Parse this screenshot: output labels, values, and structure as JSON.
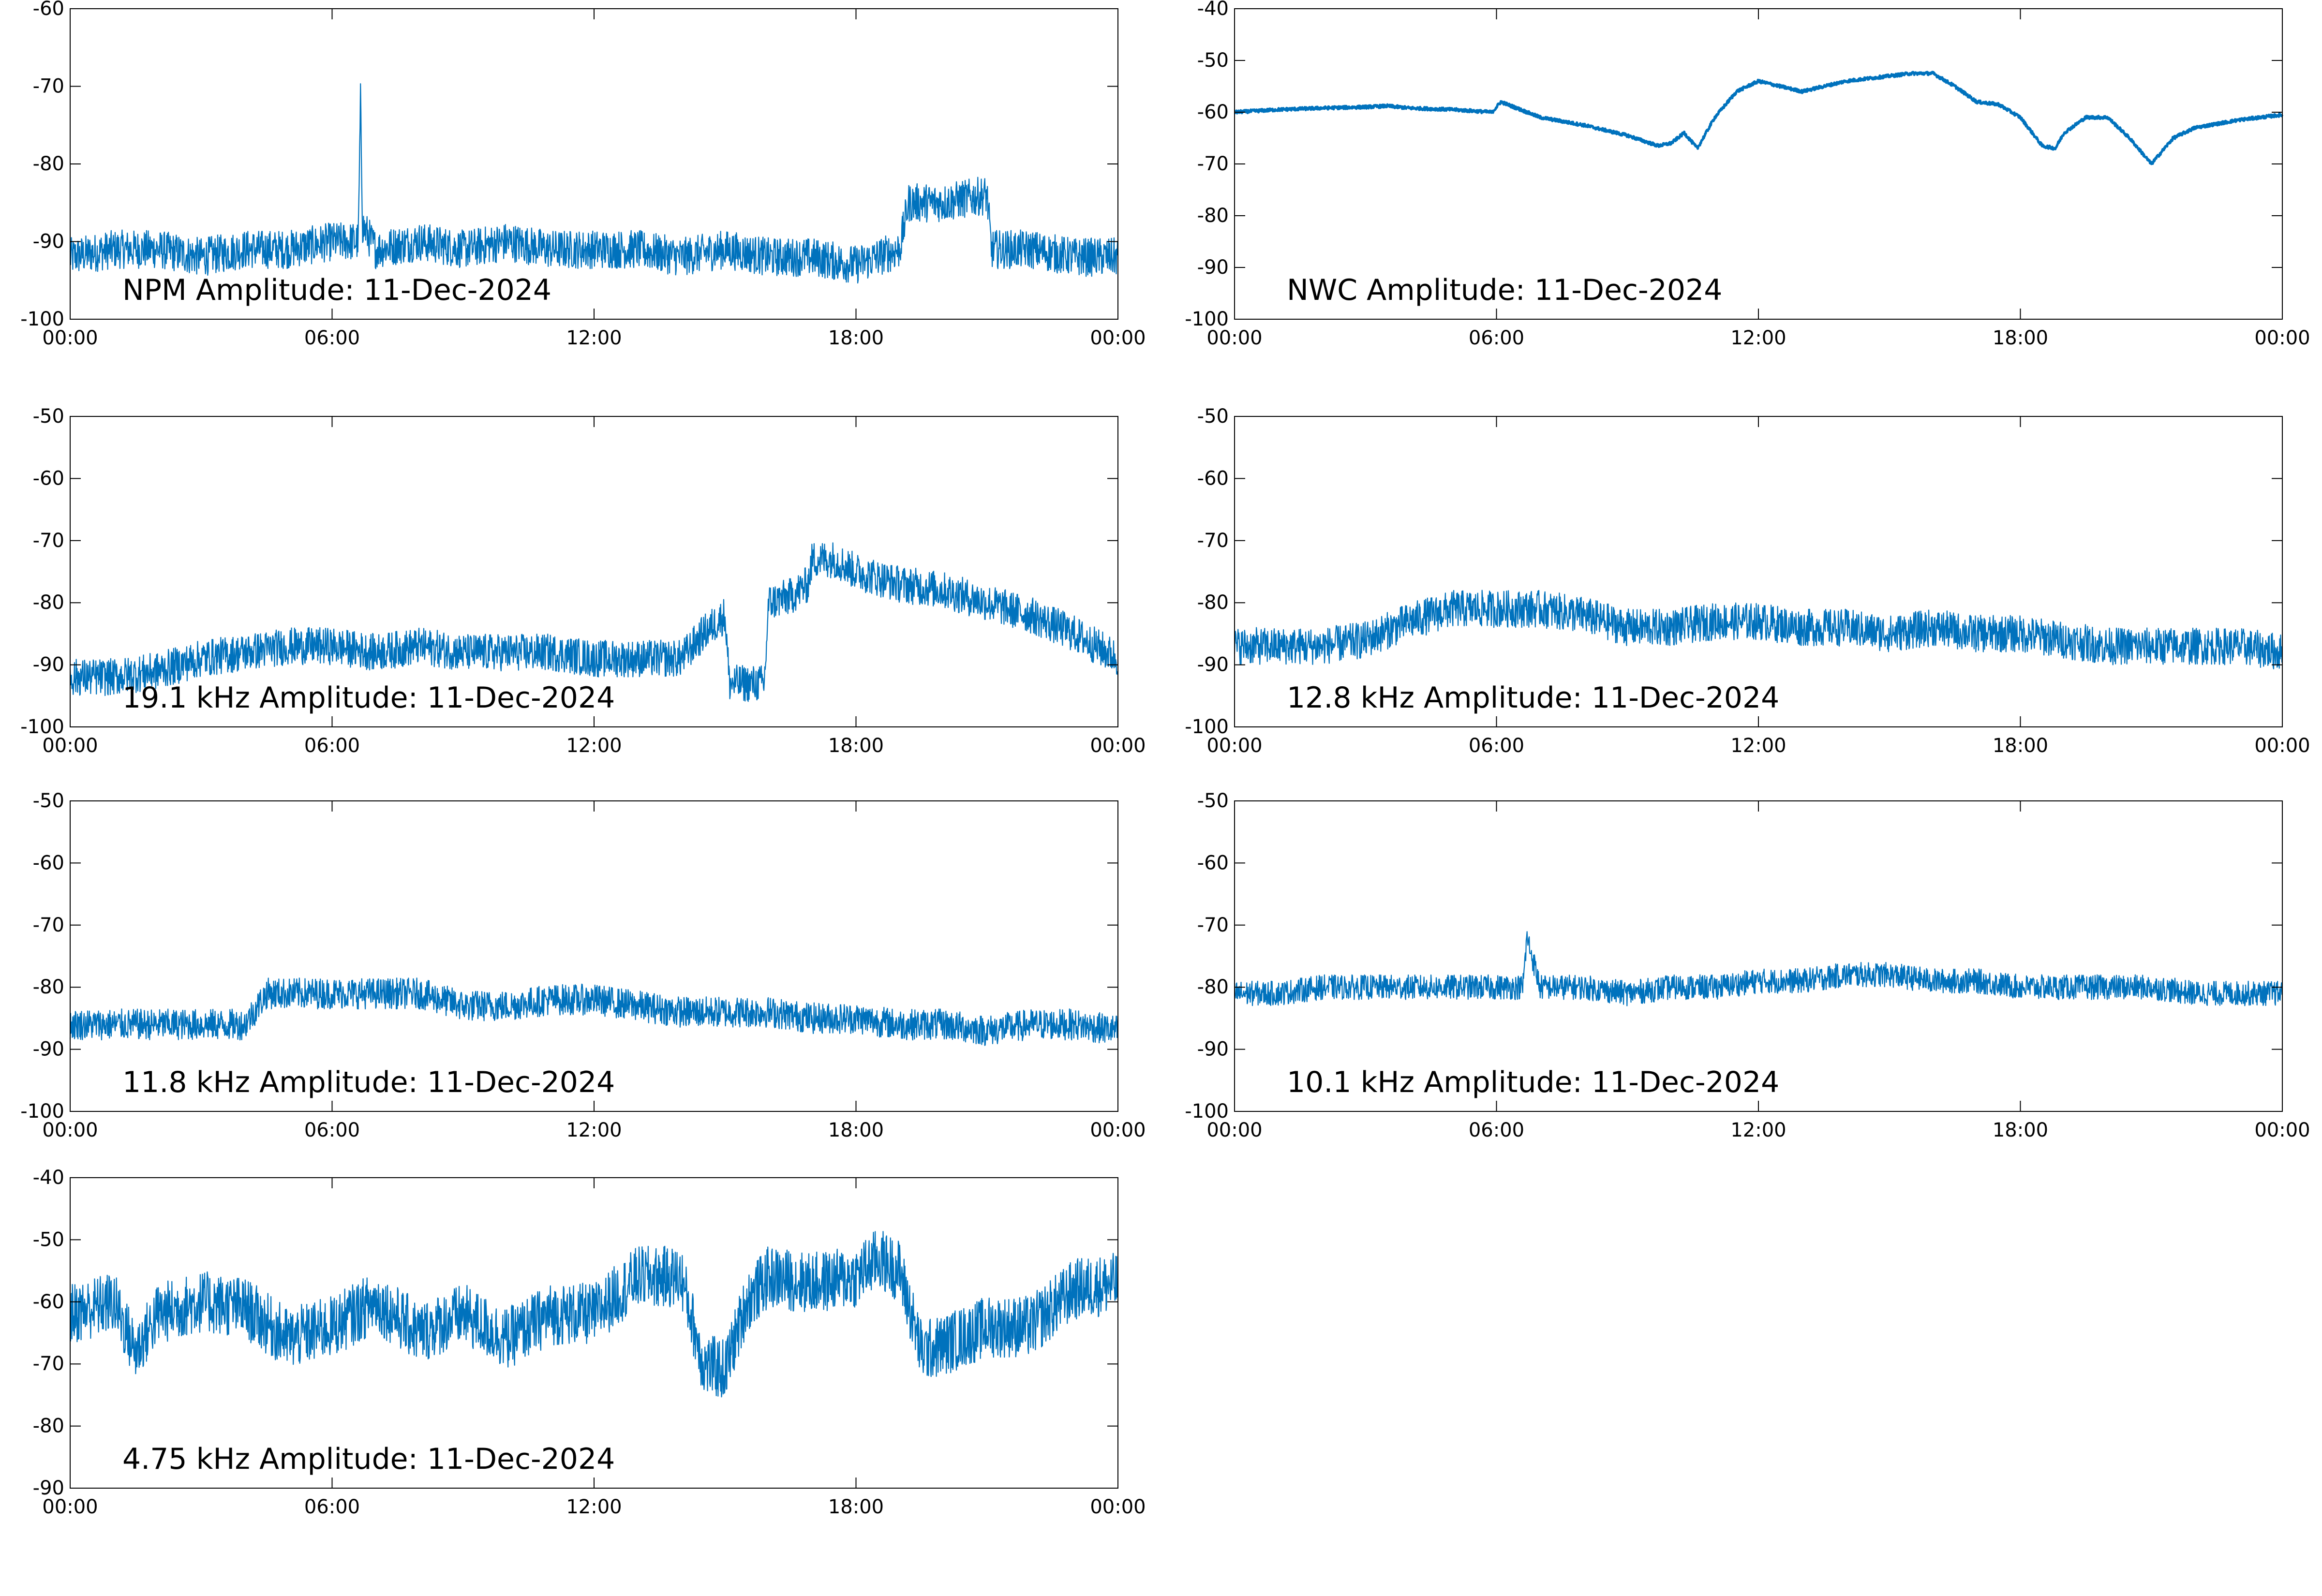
{
  "figure": {
    "line_color": "#0072bd",
    "background": "#ffffff",
    "axis_color": "#000000"
  },
  "chart_data": [
    {
      "type": "line",
      "title": "NPM Amplitude: 11-Dec-2024",
      "x_ticks": [
        "00:00",
        "06:00",
        "12:00",
        "18:00",
        "00:00"
      ],
      "y_ticks": [
        "-60",
        "-70",
        "-80",
        "-90",
        "-100"
      ],
      "ylim": [
        -100,
        -60
      ],
      "xlim_hours": [
        0,
        24
      ],
      "series": [
        {
          "x_hours": [
            0,
            1,
            2,
            3,
            4,
            5,
            6,
            6.6,
            6.65,
            6.7,
            7,
            8,
            9,
            10,
            11,
            12,
            13,
            14,
            15,
            16,
            17,
            18,
            19,
            19.2,
            20,
            21,
            21.1,
            22,
            23,
            24
          ],
          "values": [
            -92,
            -91,
            -91,
            -92,
            -91,
            -91,
            -90,
            -90,
            -72,
            -88,
            -91,
            -90,
            -91,
            -90,
            -91,
            -91,
            -91,
            -92,
            -91,
            -92,
            -92,
            -93,
            -91,
            -85,
            -85,
            -84,
            -91,
            -91,
            -92,
            -92
          ],
          "noise_band": 5
        }
      ]
    },
    {
      "type": "line",
      "title": "NWC Amplitude: 11-Dec-2024",
      "x_ticks": [
        "00:00",
        "06:00",
        "12:00",
        "18:00",
        "00:00"
      ],
      "y_ticks": [
        "-40",
        "-50",
        "-60",
        "-70",
        "-80",
        "-90",
        "-100"
      ],
      "ylim": [
        -100,
        -40
      ],
      "xlim_hours": [
        0,
        24
      ],
      "series": [
        {
          "x_hours": [
            0,
            1,
            2,
            3,
            3.5,
            4,
            5,
            5.9,
            6.1,
            7,
            8,
            9,
            9.7,
            10,
            10.3,
            10.6,
            11,
            11.5,
            12,
            12.5,
            13,
            14,
            15,
            15.5,
            16,
            16.5,
            17,
            17.5,
            18,
            18.5,
            18.8,
            19,
            19.5,
            20,
            20.5,
            21,
            21.5,
            22,
            23,
            24
          ],
          "values": [
            -60,
            -59.5,
            -59.2,
            -59,
            -58.8,
            -59.2,
            -59.5,
            -60,
            -58,
            -61,
            -62.5,
            -64.5,
            -66.5,
            -66,
            -64,
            -67,
            -61,
            -56,
            -54,
            -55,
            -56,
            -54,
            -53,
            -52.5,
            -52.5,
            -55,
            -58,
            -58.5,
            -61,
            -66.5,
            -67,
            -64,
            -61,
            -61,
            -65,
            -70,
            -65,
            -63,
            -61.5,
            -60.5
          ],
          "noise_band": 0.6
        }
      ]
    },
    {
      "type": "line",
      "title": "19.1 kHz Amplitude: 11-Dec-2024",
      "x_ticks": [
        "00:00",
        "06:00",
        "12:00",
        "18:00",
        "00:00"
      ],
      "y_ticks": [
        "-50",
        "-60",
        "-70",
        "-80",
        "-90",
        "-100"
      ],
      "ylim": [
        -100,
        -50
      ],
      "xlim_hours": [
        0,
        24
      ],
      "series": [
        {
          "x_hours": [
            0,
            1,
            2,
            3,
            4,
            5,
            6,
            7,
            8,
            9,
            10,
            11,
            12,
            13,
            14,
            14.5,
            15,
            15.1,
            15.9,
            16,
            16.5,
            16.9,
            17,
            17.5,
            18,
            19,
            20,
            21,
            22,
            23,
            24
          ],
          "values": [
            -92,
            -92,
            -91,
            -89,
            -88,
            -87,
            -87,
            -88,
            -87,
            -88,
            -88,
            -88,
            -89,
            -89,
            -89,
            -85,
            -82,
            -93,
            -93,
            -80,
            -79,
            -77,
            -73,
            -73,
            -75,
            -77,
            -78,
            -80,
            -82,
            -85,
            -89
          ],
          "noise_band": 6
        }
      ]
    },
    {
      "type": "line",
      "title": "12.8 kHz Amplitude: 11-Dec-2024",
      "x_ticks": [
        "00:00",
        "06:00",
        "12:00",
        "18:00",
        "00:00"
      ],
      "y_ticks": [
        "-50",
        "-60",
        "-70",
        "-80",
        "-90",
        "-100"
      ],
      "ylim": [
        -100,
        -50
      ],
      "xlim_hours": [
        0,
        24
      ],
      "series": [
        {
          "x_hours": [
            0,
            1,
            2,
            3,
            4,
            5,
            6,
            7,
            8,
            9,
            10,
            11,
            12,
            13,
            14,
            15,
            16,
            17,
            18,
            19,
            20,
            21,
            22,
            23,
            24
          ],
          "values": [
            -87,
            -87,
            -87,
            -86,
            -83,
            -81,
            -81,
            -81,
            -82,
            -84,
            -84,
            -83,
            -83,
            -84,
            -84,
            -85,
            -84,
            -85,
            -85,
            -86,
            -87,
            -87,
            -87,
            -87,
            -88
          ],
          "noise_band": 6
        }
      ]
    },
    {
      "type": "line",
      "title": "11.8 kHz Amplitude: 11-Dec-2024",
      "x_ticks": [
        "00:00",
        "06:00",
        "12:00",
        "18:00",
        "00:00"
      ],
      "y_ticks": [
        "-50",
        "-60",
        "-70",
        "-80",
        "-90",
        "-100"
      ],
      "ylim": [
        -100,
        -50
      ],
      "xlim_hours": [
        0,
        24
      ],
      "series": [
        {
          "x_hours": [
            0,
            1,
            2,
            3,
            4,
            4.5,
            5,
            6,
            7,
            8,
            9,
            10,
            11,
            12,
            13,
            14,
            15,
            16,
            17,
            18,
            19,
            20,
            21,
            22,
            23,
            24
          ],
          "values": [
            -86,
            -86,
            -86,
            -86,
            -86,
            -81,
            -81,
            -81,
            -81,
            -81,
            -83,
            -83,
            -82,
            -82,
            -83,
            -84,
            -84,
            -84,
            -85,
            -85,
            -86,
            -86,
            -87,
            -86,
            -86,
            -87
          ],
          "noise_band": 5
        }
      ]
    },
    {
      "type": "line",
      "title": "10.1 kHz Amplitude: 11-Dec-2024",
      "x_ticks": [
        "00:00",
        "06:00",
        "12:00",
        "18:00",
        "00:00"
      ],
      "y_ticks": [
        "-50",
        "-60",
        "-70",
        "-80",
        "-90",
        "-100"
      ],
      "ylim": [
        -100,
        -50
      ],
      "xlim_hours": [
        0,
        24
      ],
      "series": [
        {
          "x_hours": [
            0,
            1,
            2,
            3,
            4,
            5,
            6,
            6.6,
            6.7,
            7,
            8,
            9,
            10,
            11,
            12,
            13,
            14,
            15,
            16,
            17,
            18,
            19,
            20,
            21,
            22,
            23,
            24
          ],
          "values": [
            -81,
            -81,
            -80,
            -80,
            -80,
            -80,
            -80,
            -80,
            -72,
            -80,
            -80,
            -81,
            -80,
            -80,
            -79,
            -79,
            -78,
            -78,
            -79,
            -79,
            -80,
            -80,
            -80,
            -80,
            -81,
            -81,
            -81
          ],
          "noise_band": 4
        }
      ]
    },
    {
      "type": "line",
      "title": "4.75 kHz Amplitude: 11-Dec-2024",
      "x_ticks": [
        "00:00",
        "06:00",
        "12:00",
        "18:00",
        "00:00"
      ],
      "y_ticks": [
        "-40",
        "-50",
        "-60",
        "-70",
        "-80",
        "-90"
      ],
      "ylim": [
        -90,
        -40
      ],
      "xlim_hours": [
        0,
        24
      ],
      "series": [
        {
          "x_hours": [
            0,
            1,
            1.5,
            2,
            3,
            4,
            5,
            6,
            7,
            8,
            9,
            10,
            11,
            12,
            13,
            14,
            14.5,
            15,
            15.5,
            16,
            17,
            18,
            18.5,
            19,
            19.5,
            20,
            21,
            22,
            23,
            24
          ],
          "values": [
            -62,
            -60,
            -68,
            -62,
            -60,
            -61,
            -66,
            -64,
            -60,
            -65,
            -62,
            -66,
            -62,
            -62,
            -56,
            -56,
            -70,
            -71,
            -60,
            -56,
            -57,
            -56,
            -53,
            -55,
            -68,
            -67,
            -64,
            -64,
            -58,
            -57
          ],
          "noise_band": 10
        }
      ]
    }
  ]
}
